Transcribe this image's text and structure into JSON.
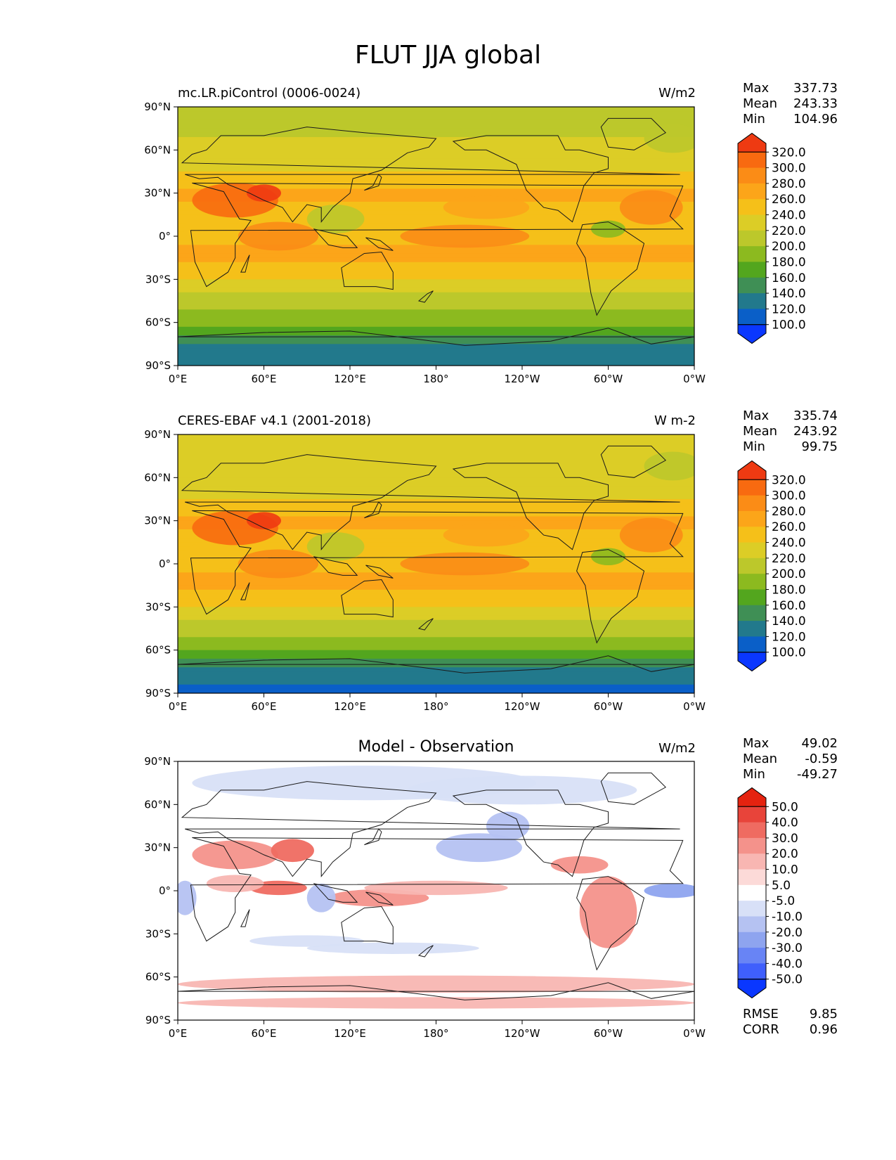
{
  "title": "FLUT JJA global",
  "lon_ticks": [
    "0°E",
    "60°E",
    "120°E",
    "180°",
    "120°W",
    "60°W",
    "0°W"
  ],
  "lat_ticks": [
    "90°N",
    "60°N",
    "30°N",
    "0°",
    "30°S",
    "60°S",
    "90°S"
  ],
  "colors": {
    "abs_scale": [
      "#0a37ff",
      "#0a5fc8",
      "#22798c",
      "#3f8f55",
      "#53a61e",
      "#8cba1f",
      "#bcc82b",
      "#dccd26",
      "#f5c019",
      "#fca519",
      "#fb8c16",
      "#f86a10",
      "#ee3a12"
    ],
    "diff_scale": [
      "#0a37ff",
      "#3f5ffc",
      "#6884f5",
      "#8ea4ef",
      "#b5c2f2",
      "#d8e0f7",
      "#ffffff",
      "#fcdad8",
      "#f8b6b2",
      "#f4928b",
      "#ef6b61",
      "#e8443a",
      "#e52310"
    ]
  },
  "panels": [
    {
      "name": "model",
      "left_title": "mc.LR.piControl (0006-0024)",
      "center_title": "",
      "units": "W/m2",
      "stats": [
        {
          "label": "Max",
          "value": "337.73"
        },
        {
          "label": "Mean",
          "value": "243.33"
        },
        {
          "label": "Min",
          "value": "104.96"
        }
      ],
      "colorbar_labels": [
        "320.0",
        "300.0",
        "280.0",
        "260.0",
        "240.0",
        "220.0",
        "200.0",
        "180.0",
        "160.0",
        "140.0",
        "120.0",
        "100.0"
      ]
    },
    {
      "name": "observation",
      "left_title": "CERES-EBAF v4.1 (2001-2018)",
      "center_title": "",
      "units": "W m-2",
      "stats": [
        {
          "label": "Max",
          "value": "335.74"
        },
        {
          "label": "Mean",
          "value": "243.92"
        },
        {
          "label": "Min",
          "value": "99.75"
        }
      ],
      "colorbar_labels": [
        "320.0",
        "300.0",
        "280.0",
        "260.0",
        "240.0",
        "220.0",
        "200.0",
        "180.0",
        "160.0",
        "140.0",
        "120.0",
        "100.0"
      ]
    },
    {
      "name": "difference",
      "left_title": "",
      "center_title": "Model - Observation",
      "units": "W/m2",
      "stats": [
        {
          "label": "Max",
          "value": "49.02"
        },
        {
          "label": "Mean",
          "value": "-0.59"
        },
        {
          "label": "Min",
          "value": "-49.27"
        }
      ],
      "colorbar_labels": [
        "50.0",
        "40.0",
        "30.0",
        "20.0",
        "10.0",
        "5.0",
        "-5.0",
        "-10.0",
        "-20.0",
        "-30.0",
        "-40.0",
        "-50.0"
      ],
      "metrics": [
        {
          "label": "RMSE",
          "value": "9.85"
        },
        {
          "label": "CORR",
          "value": "0.96"
        }
      ]
    }
  ],
  "chart_data": [
    {
      "type": "heatmap",
      "title": "mc.LR.piControl (0006-0024)",
      "variable": "FLUT",
      "season": "JJA",
      "units": "W/m2",
      "xlim": [
        0,
        360
      ],
      "ylim": [
        -90,
        90
      ],
      "zonal_mean_by_lat": {
        "lat": [
          -90,
          -75,
          -60,
          -45,
          -30,
          -15,
          0,
          15,
          30,
          45,
          60,
          75,
          90
        ],
        "values": [
          130,
          140,
          185,
          210,
          240,
          265,
          255,
          250,
          265,
          240,
          225,
          215,
          215
        ]
      },
      "levels": [
        100,
        120,
        140,
        160,
        180,
        200,
        220,
        240,
        260,
        280,
        300,
        320
      ],
      "stats": {
        "max": 337.73,
        "mean": 243.33,
        "min": 104.96
      }
    },
    {
      "type": "heatmap",
      "title": "CERES-EBAF v4.1 (2001-2018)",
      "variable": "FLUT",
      "season": "JJA",
      "units": "W m-2",
      "xlim": [
        0,
        360
      ],
      "ylim": [
        -90,
        90
      ],
      "zonal_mean_by_lat": {
        "lat": [
          -90,
          -75,
          -60,
          -45,
          -30,
          -15,
          0,
          15,
          30,
          45,
          60,
          75,
          90
        ],
        "values": [
          110,
          130,
          180,
          210,
          240,
          265,
          255,
          248,
          268,
          240,
          225,
          220,
          220
        ]
      },
      "levels": [
        100,
        120,
        140,
        160,
        180,
        200,
        220,
        240,
        260,
        280,
        300,
        320
      ],
      "stats": {
        "max": 335.74,
        "mean": 243.92,
        "min": 99.75
      }
    },
    {
      "type": "heatmap",
      "title": "Model - Observation",
      "units": "W/m2",
      "xlim": [
        0,
        360
      ],
      "ylim": [
        -90,
        90
      ],
      "levels": [
        -50,
        -40,
        -30,
        -20,
        -10,
        -5,
        5,
        10,
        20,
        30,
        40,
        50
      ],
      "stats": {
        "max": 49.02,
        "mean": -0.59,
        "min": -49.27
      },
      "rmse": 9.85,
      "corr": 0.96
    }
  ]
}
